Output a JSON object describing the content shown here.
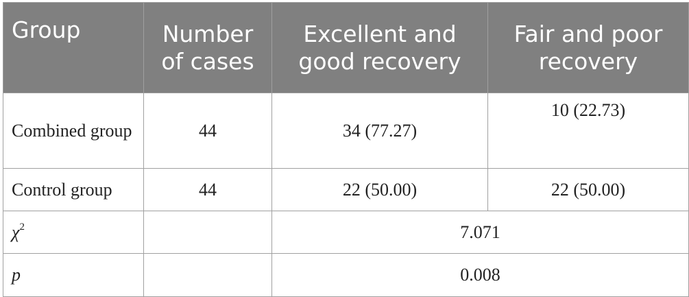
{
  "header": {
    "group": "Group",
    "number_of_cases": "Number of cases",
    "excellent_good": "Excellent and good recovery",
    "fair_poor": "Fair and poor recovery"
  },
  "rows": [
    {
      "group": "Combined group",
      "cases": "44",
      "excellent_good": "34 (77.27)",
      "fair_poor": "10 (22.73)"
    },
    {
      "group": "Control group",
      "cases": "44",
      "excellent_good": "22 (50.00)",
      "fair_poor": "22 (50.00)"
    }
  ],
  "stats": [
    {
      "symbol": "χ",
      "superscript": "2",
      "value": "7.071"
    },
    {
      "symbol": "p",
      "value": "0.008"
    }
  ]
}
